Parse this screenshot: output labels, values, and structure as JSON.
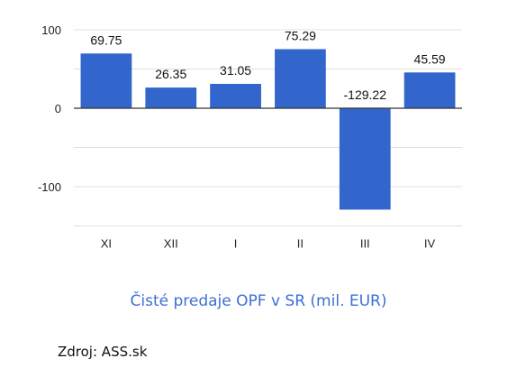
{
  "chart_data": {
    "type": "bar",
    "categories": [
      "XI",
      "XII",
      "I",
      "II",
      "III",
      "IV"
    ],
    "values": [
      69.75,
      26.35,
      31.05,
      75.29,
      -129.22,
      45.59
    ],
    "value_labels": [
      "69.75",
      "26.35",
      "31.05",
      "75.29",
      "-129.22",
      "45.59"
    ],
    "yticks": [
      100,
      0,
      -100
    ],
    "ytick_labels": [
      "100",
      "0",
      "-100"
    ],
    "ylim": [
      -150,
      100
    ],
    "grid": true,
    "title": "",
    "xlabel": "",
    "ylabel": ""
  },
  "caption": "Čisté predaje OPF v SR (mil. EUR)",
  "source": "Zdroj: ASS.sk",
  "colors": {
    "bar": "#3366cc",
    "caption": "#3c6fd6",
    "grid": "#e0e0e0",
    "zero_line": "#333333"
  }
}
